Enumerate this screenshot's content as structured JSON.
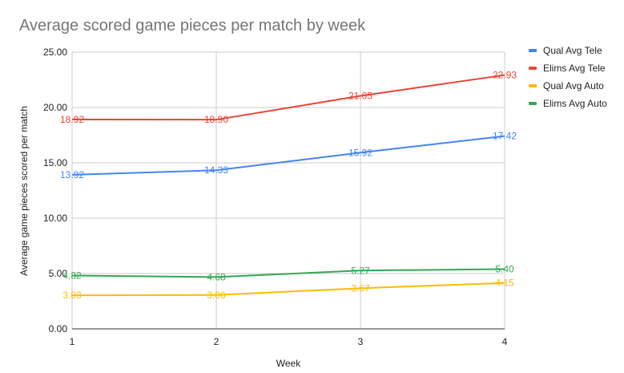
{
  "chart_data": {
    "type": "line",
    "title": "Average scored game pieces per match by week",
    "xlabel": "Week",
    "ylabel": "Average game pieces scored per match",
    "x": [
      1,
      2,
      3,
      4
    ],
    "ylim": [
      0,
      25
    ],
    "yticks": [
      "0.00",
      "5.00",
      "10.00",
      "15.00",
      "20.00",
      "25.00"
    ],
    "xticks": [
      "1",
      "2",
      "3",
      "4"
    ],
    "grid": true,
    "legend_position": "right",
    "series": [
      {
        "name": "Qual Avg Tele",
        "color": "#4285f4",
        "values": [
          13.92,
          14.33,
          15.92,
          17.42
        ],
        "labels": [
          "13.92",
          "14.33",
          "15.92",
          "17.42"
        ]
      },
      {
        "name": "Elims Avg Tele",
        "color": "#ea4335",
        "values": [
          18.92,
          18.9,
          21.05,
          22.93
        ],
        "labels": [
          "18.92",
          "18.90",
          "21.05",
          "22.93"
        ]
      },
      {
        "name": "Qual Avg Auto",
        "color": "#fbbc04",
        "values": [
          3.03,
          3.06,
          3.67,
          4.15
        ],
        "labels": [
          "3.03",
          "3.06",
          "3.67",
          "4.15"
        ]
      },
      {
        "name": "Elims Avg Auto",
        "color": "#34a853",
        "values": [
          4.82,
          4.68,
          5.27,
          5.4
        ],
        "labels": [
          "4.82",
          "4.68",
          "5.27",
          "5.40"
        ]
      }
    ]
  }
}
